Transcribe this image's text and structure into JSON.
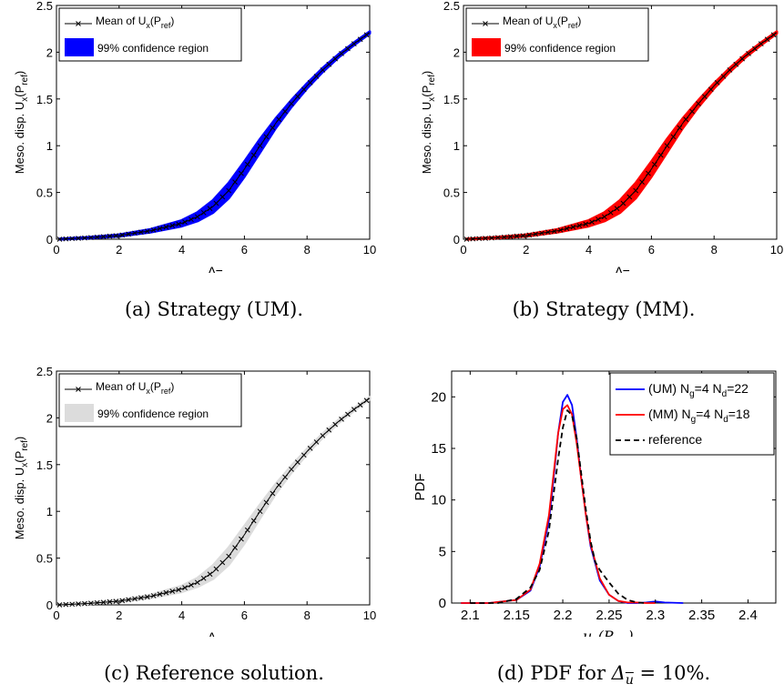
{
  "chart_data": [
    {
      "type": "area",
      "panel": "a",
      "caption": "(a) Strategy (UM).",
      "xlabel": "Δ",
      "xlabel_sub": "u",
      "ylabel_prefix": "Meso. disp. U",
      "ylabel_sub1": "x",
      "ylabel_mid": "(P",
      "ylabel_sub2": "ref",
      "ylabel_suffix": ")",
      "xlim": [
        0,
        10
      ],
      "ylim": [
        0,
        2.5
      ],
      "xticks": [
        0,
        2,
        4,
        6,
        8,
        10
      ],
      "yticks": [
        0,
        0.5,
        1,
        1.5,
        2,
        2.5
      ],
      "ytick_labels": [
        "0",
        "0.5",
        "1",
        "1.5",
        "2",
        "2.5"
      ],
      "fill_color": "#0000ff",
      "legend": {
        "placement": "top-left",
        "mean_label": "Mean of U",
        "mean_sub1": "x",
        "mean_mid": "(P",
        "mean_sub2": "ref",
        "mean_suffix": ")",
        "band_label": "99% confidence region"
      },
      "x": [
        0.1,
        1,
        2,
        3,
        4,
        4.5,
        5,
        5.5,
        6,
        6.5,
        7,
        7.5,
        8,
        8.5,
        9,
        9.5,
        10
      ],
      "mean": [
        0.0,
        0.015,
        0.04,
        0.09,
        0.17,
        0.24,
        0.35,
        0.52,
        0.75,
        1.0,
        1.24,
        1.45,
        1.64,
        1.81,
        1.96,
        2.09,
        2.21
      ],
      "band_half_width": [
        0.002,
        0.004,
        0.008,
        0.015,
        0.03,
        0.045,
        0.065,
        0.08,
        0.08,
        0.07,
        0.05,
        0.035,
        0.025,
        0.02,
        0.015,
        0.012,
        0.01
      ]
    },
    {
      "type": "area",
      "panel": "b",
      "caption": "(b) Strategy (MM).",
      "xlabel": "Δ",
      "xlabel_sub": "u",
      "ylabel_prefix": "Meso. disp. U",
      "ylabel_sub1": "x",
      "ylabel_mid": "(P",
      "ylabel_sub2": "ref",
      "ylabel_suffix": ")",
      "xlim": [
        0,
        10
      ],
      "ylim": [
        0,
        2.5
      ],
      "xticks": [
        0,
        2,
        4,
        6,
        8,
        10
      ],
      "yticks": [
        0,
        0.5,
        1,
        1.5,
        2,
        2.5
      ],
      "ytick_labels": [
        "0",
        "0.5",
        "1",
        "1.5",
        "2",
        "2.5"
      ],
      "fill_color": "#ff0000",
      "legend": {
        "placement": "top-left",
        "mean_label": "Mean of U",
        "mean_sub1": "x",
        "mean_mid": "(P",
        "mean_sub2": "ref",
        "mean_suffix": ")",
        "band_label": "99% confidence region"
      },
      "x": [
        0.1,
        1,
        2,
        3,
        4,
        4.5,
        5,
        5.5,
        6,
        6.5,
        7,
        7.5,
        8,
        8.5,
        9,
        9.5,
        10
      ],
      "mean": [
        0.0,
        0.015,
        0.04,
        0.09,
        0.17,
        0.24,
        0.35,
        0.52,
        0.75,
        1.0,
        1.24,
        1.45,
        1.64,
        1.81,
        1.96,
        2.09,
        2.21
      ],
      "band_half_width": [
        0.002,
        0.004,
        0.008,
        0.015,
        0.03,
        0.045,
        0.065,
        0.08,
        0.08,
        0.07,
        0.05,
        0.035,
        0.025,
        0.02,
        0.015,
        0.012,
        0.01
      ]
    },
    {
      "type": "area",
      "panel": "c",
      "caption": "(c) Reference solution.",
      "xlabel": "Δ",
      "xlabel_sub": "u",
      "ylabel_prefix": "Meso. disp. U",
      "ylabel_sub1": "x",
      "ylabel_mid": "(P",
      "ylabel_sub2": "ref",
      "ylabel_suffix": ")",
      "xlim": [
        0,
        10
      ],
      "ylim": [
        0,
        2.5
      ],
      "xticks": [
        0,
        2,
        4,
        6,
        8,
        10
      ],
      "yticks": [
        0,
        0.5,
        1,
        1.5,
        2,
        2.5
      ],
      "ytick_labels": [
        "0",
        "0.5",
        "1",
        "1.5",
        "2",
        "2.5"
      ],
      "fill_color": "#dcdcdc",
      "legend": {
        "placement": "top-left",
        "mean_label": "Mean of U",
        "mean_sub1": "x",
        "mean_mid": "(P",
        "mean_sub2": "ref",
        "mean_suffix": ")",
        "band_label": "99% confidence region"
      },
      "x": [
        0.1,
        1,
        2,
        3,
        4,
        4.5,
        5,
        5.5,
        6,
        6.5,
        7,
        7.5,
        8,
        8.5,
        9,
        9.5,
        10
      ],
      "mean": [
        0.0,
        0.015,
        0.04,
        0.09,
        0.17,
        0.24,
        0.35,
        0.52,
        0.75,
        1.0,
        1.24,
        1.45,
        1.64,
        1.81,
        1.96,
        2.09,
        2.21
      ],
      "band_half_width": [
        0.002,
        0.004,
        0.008,
        0.015,
        0.03,
        0.045,
        0.07,
        0.09,
        0.09,
        0.07,
        0.05,
        0.035,
        0.025,
        0.02,
        0.015,
        0.012,
        0.01
      ]
    },
    {
      "type": "line",
      "panel": "d",
      "caption_prefix": "(d) PDF for ",
      "caption_math": "Δ",
      "caption_sub": "u",
      "caption_suffix": " = 10%.",
      "xlabel_main": "u",
      "xlabel_sub1": "x",
      "xlabel_mid": "(P",
      "xlabel_sub2": "ref",
      "xlabel_suffix": ")",
      "ylabel": "PDF",
      "xlim": [
        2.08,
        2.43
      ],
      "ylim": [
        0,
        22.5
      ],
      "xticks": [
        2.1,
        2.15,
        2.2,
        2.25,
        2.3,
        2.35,
        2.4
      ],
      "xtick_labels": [
        "2.1",
        "2.15",
        "2.2",
        "2.25",
        "2.3",
        "2.35",
        "2.4"
      ],
      "yticks": [
        0,
        5,
        10,
        15,
        20
      ],
      "ytick_labels": [
        "0",
        "5",
        "10",
        "15",
        "20"
      ],
      "legend_placement": "top-right",
      "series": [
        {
          "label_main": "(UM) N",
          "label_sub1": "g",
          "label_mid": "=4 N",
          "label_sub2": "d",
          "label_end": "=22",
          "color": "#0000ff",
          "dash": "solid",
          "x": [
            2.09,
            2.12,
            2.15,
            2.165,
            2.175,
            2.185,
            2.19,
            2.195,
            2.2,
            2.205,
            2.21,
            2.215,
            2.22,
            2.225,
            2.23,
            2.24,
            2.25,
            2.26,
            2.27,
            2.28,
            2.29,
            2.3,
            2.31,
            2.33
          ],
          "y": [
            0,
            0,
            0.3,
            1.2,
            3.5,
            8,
            12,
            16.5,
            19.5,
            20.2,
            19.2,
            16,
            12,
            8.5,
            5.5,
            2.2,
            0.8,
            0.2,
            0,
            0,
            0.05,
            0.15,
            0.05,
            0
          ]
        },
        {
          "label_main": "(MM) N",
          "label_sub1": "g",
          "label_mid": "=4 N",
          "label_sub2": "d",
          "label_end": "=18",
          "color": "#ff0000",
          "dash": "solid",
          "x": [
            2.09,
            2.12,
            2.15,
            2.165,
            2.175,
            2.185,
            2.19,
            2.195,
            2.2,
            2.205,
            2.21,
            2.215,
            2.22,
            2.225,
            2.23,
            2.24,
            2.25,
            2.26,
            2.27,
            2.28,
            2.29,
            2.3
          ],
          "y": [
            0,
            0,
            0.3,
            1.3,
            3.8,
            8.5,
            12.5,
            16.5,
            18.8,
            19.2,
            18.3,
            15.5,
            12,
            8.5,
            5.7,
            2.4,
            0.8,
            0.2,
            0.05,
            0.05,
            0,
            0
          ]
        },
        {
          "label": "reference",
          "color": "#000000",
          "dash": "dashed",
          "x": [
            2.1,
            2.13,
            2.15,
            2.165,
            2.175,
            2.185,
            2.19,
            2.195,
            2.2,
            2.205,
            2.21,
            2.215,
            2.22,
            2.225,
            2.23,
            2.235,
            2.24,
            2.245,
            2.25,
            2.26,
            2.27,
            2.28,
            2.29
          ],
          "y": [
            0,
            0,
            0.4,
            1.5,
            3.2,
            7,
            10.5,
            14,
            17,
            18.7,
            18.2,
            16,
            12.5,
            9,
            6,
            4,
            3.2,
            2.6,
            2,
            0.9,
            0.3,
            0.05,
            0
          ]
        }
      ]
    }
  ]
}
